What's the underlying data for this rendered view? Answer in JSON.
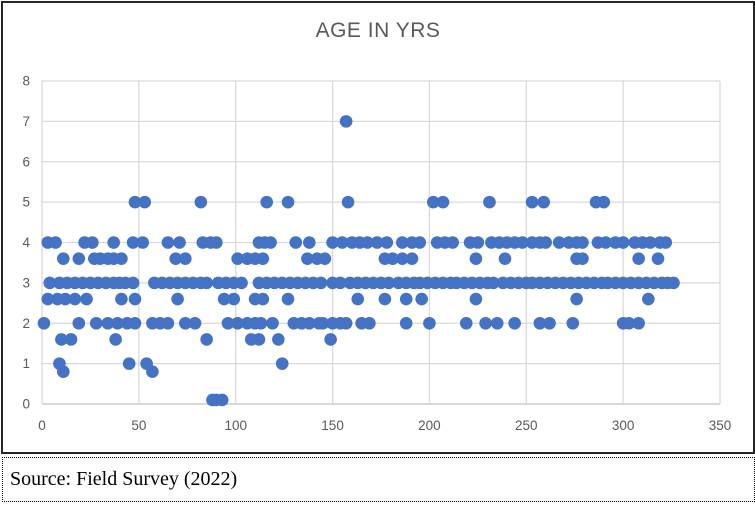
{
  "chart": {
    "title": "AGE IN YRS"
  },
  "source": {
    "text": "Source: Field Survey (2022)"
  },
  "colors": {
    "point": "#4472C4",
    "gridline": "#D9D9D9",
    "axis_line": "#BFBFBF",
    "tick_text": "#595959",
    "title_text": "#595959",
    "frame_border": "#262626"
  },
  "chart_data": {
    "type": "scatter",
    "title": "AGE IN YRS",
    "xlabel": "",
    "ylabel": "",
    "xlim": [
      0,
      350
    ],
    "ylim": [
      0,
      8
    ],
    "x_ticks": [
      0,
      50,
      100,
      150,
      200,
      250,
      300,
      350
    ],
    "y_ticks": [
      0,
      1,
      2,
      3,
      4,
      5,
      6,
      7,
      8
    ],
    "grid": true,
    "legend": false,
    "point_radius": 6.3,
    "rows": [
      {
        "y": 7,
        "x": [
          157
        ]
      },
      {
        "y": 5,
        "x": [
          48,
          53,
          82,
          116,
          127,
          158,
          202,
          207,
          231,
          253,
          259,
          286,
          290
        ]
      },
      {
        "y": 4,
        "x": [
          3,
          7,
          22,
          26,
          37,
          47,
          52,
          65,
          71,
          83,
          87,
          90,
          112,
          115,
          118,
          131,
          138,
          150,
          155,
          160,
          164,
          168,
          173,
          178,
          186,
          191,
          195,
          204,
          208,
          212,
          221,
          225,
          232,
          236,
          240,
          244,
          248,
          253,
          257,
          260,
          267,
          272,
          276,
          279,
          287,
          291,
          296,
          300,
          306,
          310,
          314,
          319,
          322
        ]
      },
      {
        "y": 3.6,
        "x": [
          11,
          19,
          27,
          30,
          34,
          37,
          41,
          69,
          74,
          101,
          106,
          110,
          114,
          137,
          142,
          146,
          177,
          181,
          186,
          191,
          224,
          239,
          276,
          279,
          308,
          318
        ]
      },
      {
        "y": 3,
        "x": [
          4,
          9,
          13,
          17,
          21,
          25,
          29,
          33,
          37,
          40,
          43,
          47,
          58,
          62,
          66,
          70,
          74,
          78,
          82,
          85,
          91,
          95,
          99,
          103,
          112,
          116,
          120,
          124,
          128,
          132,
          136,
          140,
          144,
          150,
          154,
          159,
          163,
          167,
          171,
          175,
          179,
          184,
          188,
          192,
          195,
          199,
          203,
          207,
          211,
          214,
          218,
          222,
          226,
          230,
          233,
          238,
          242,
          246,
          250,
          253,
          257,
          261,
          265,
          269,
          273,
          277,
          281,
          285,
          289,
          292,
          296,
          300,
          304,
          308,
          312,
          316,
          320,
          323,
          326
        ]
      },
      {
        "y": 2.6,
        "x": [
          3,
          8,
          12,
          17,
          23,
          41,
          48,
          70,
          94,
          99,
          110,
          114,
          127,
          163,
          177,
          188,
          196,
          224,
          276,
          313
        ]
      },
      {
        "y": 2,
        "x": [
          1,
          19,
          28,
          34,
          39,
          44,
          48,
          57,
          61,
          65,
          74,
          79,
          96,
          101,
          106,
          110,
          113,
          119,
          130,
          134,
          138,
          143,
          145,
          150,
          154,
          157,
          165,
          169,
          188,
          200,
          219,
          229,
          235,
          244,
          257,
          262,
          274,
          300,
          303,
          308
        ]
      },
      {
        "y": 1.6,
        "x": [
          10,
          15,
          38,
          85,
          108,
          112,
          122,
          149
        ]
      },
      {
        "y": 1,
        "x": [
          9,
          45,
          54,
          124
        ]
      },
      {
        "y": 0.8,
        "x": [
          11,
          57
        ]
      },
      {
        "y": 0.1,
        "x": [
          88,
          90,
          93
        ]
      }
    ]
  }
}
